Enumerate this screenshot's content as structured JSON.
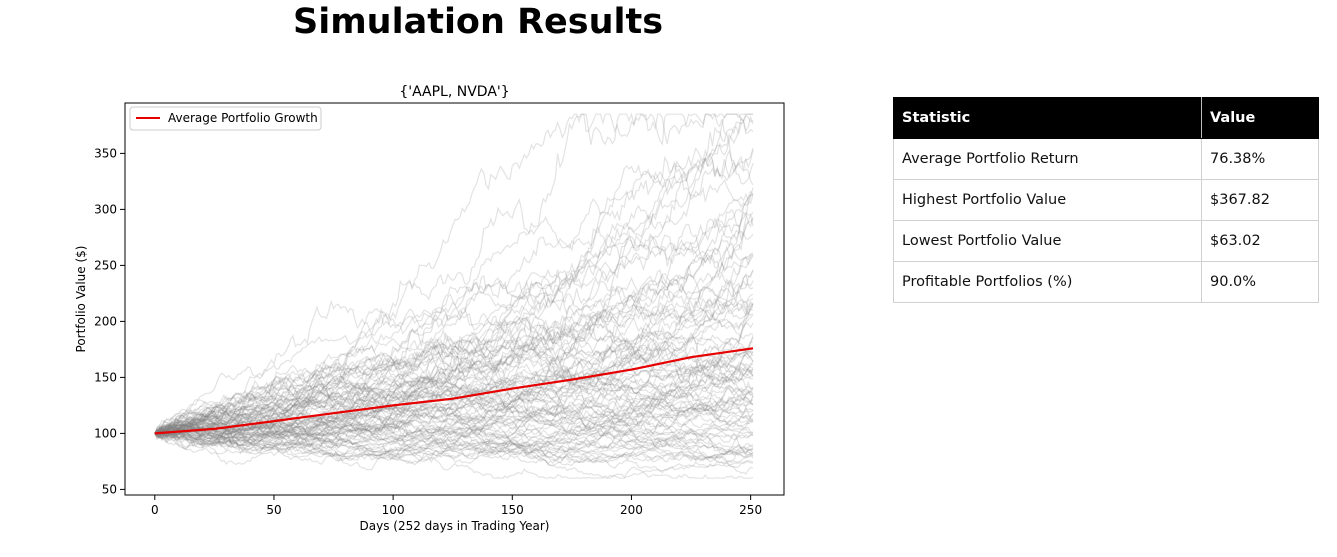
{
  "page_title": "Simulation Results",
  "table": {
    "headers": [
      "Statistic",
      "Value"
    ],
    "rows": [
      [
        "Average Portfolio Return",
        "76.38%"
      ],
      [
        "Highest Portfolio Value",
        "$367.82"
      ],
      [
        "Lowest Portfolio Value",
        "$63.02"
      ],
      [
        "Profitable Portfolios (%)",
        "90.0%"
      ]
    ]
  },
  "chart_data": {
    "type": "line",
    "title": "{'AAPL, NVDA'}",
    "xlabel": "Days (252 days in Trading Year)",
    "ylabel": "Portfolio Value ($)",
    "xlim": [
      -12.5,
      264
    ],
    "ylim": [
      45,
      395
    ],
    "xticks": [
      0,
      50,
      100,
      150,
      200,
      250
    ],
    "yticks": [
      50,
      100,
      150,
      200,
      250,
      300,
      350
    ],
    "legend_position": "top-left",
    "grid": false,
    "simulated_paths_color": "#808080",
    "series": [
      {
        "name": "Average Portfolio Growth",
        "color": "#e60000",
        "x": [
          0,
          25,
          50,
          75,
          100,
          125,
          150,
          175,
          200,
          225,
          251
        ],
        "values": [
          100,
          104,
          111,
          118,
          125,
          131,
          140,
          148,
          157,
          168,
          176
        ]
      }
    ]
  }
}
